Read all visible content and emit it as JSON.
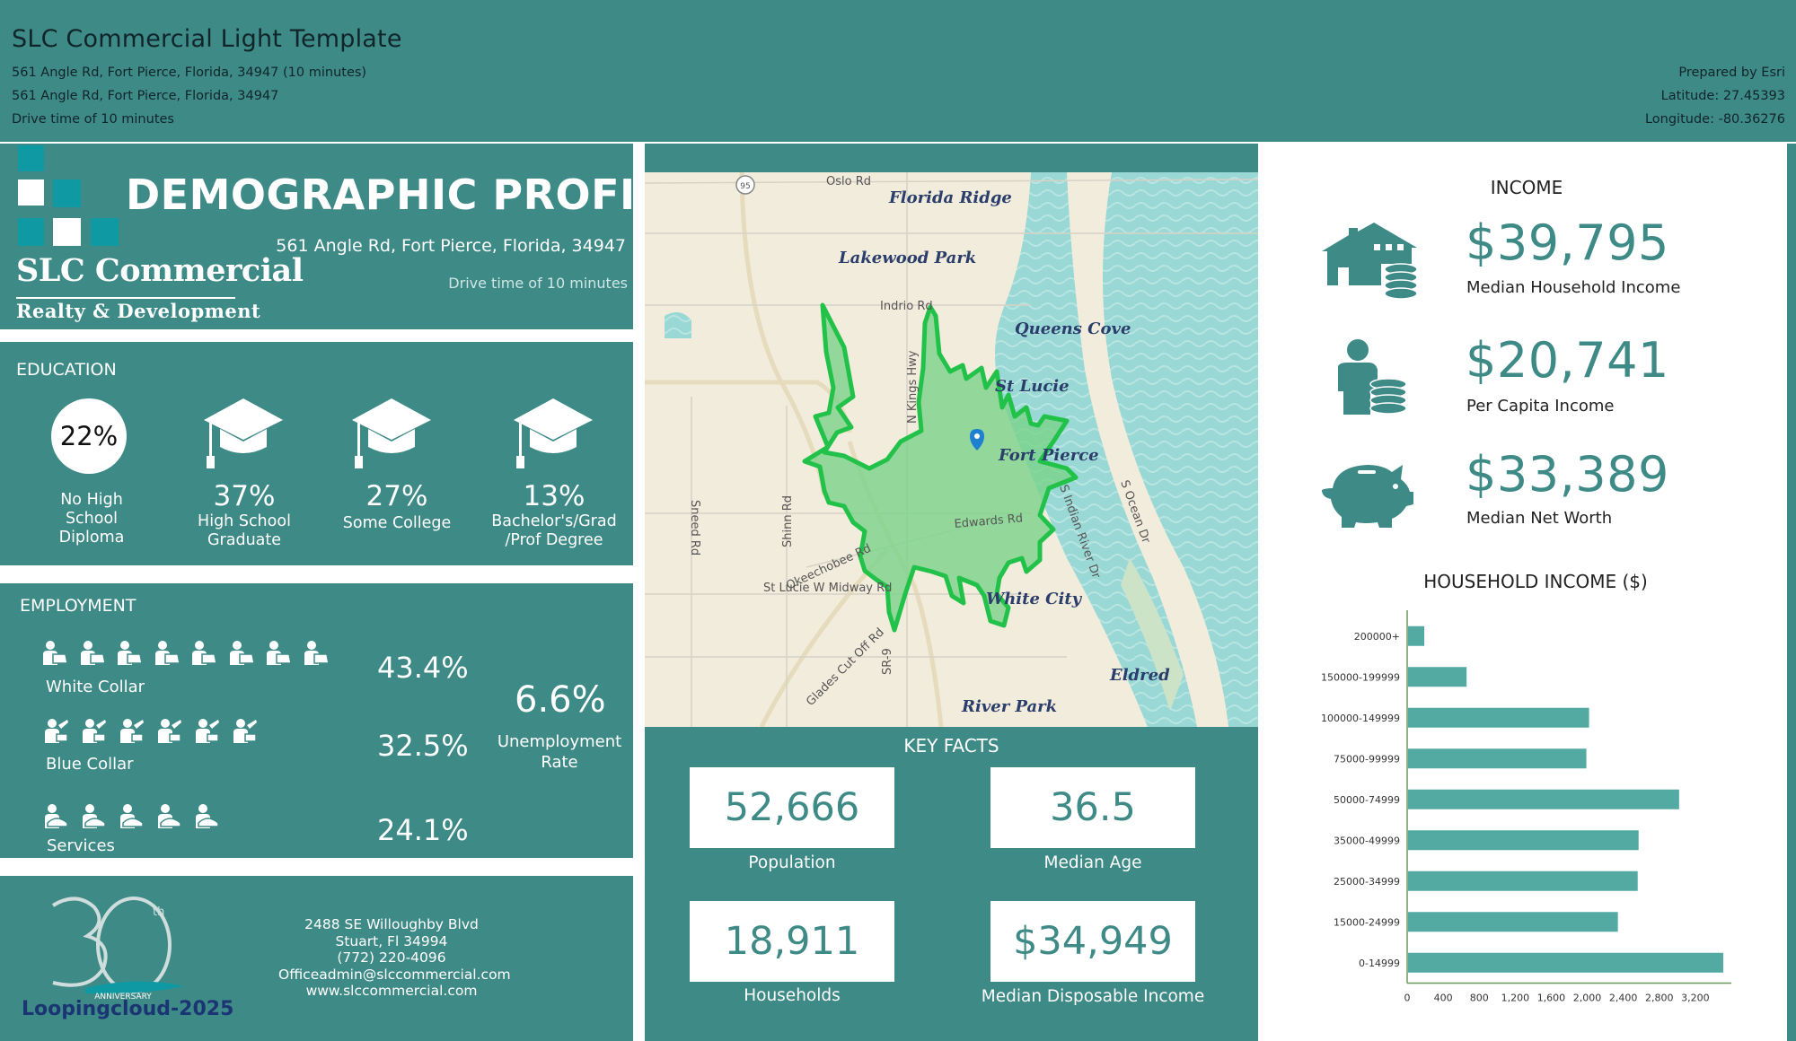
{
  "header": {
    "title": "SLC Commercial Light Template",
    "line1": "561 Angle Rd, Fort Pierce, Florida, 34947 (10 minutes)",
    "line2": "561 Angle Rd, Fort Pierce, Florida, 34947",
    "line3": "Drive time of 10 minutes",
    "prepared_by": "Prepared by Esri",
    "latitude": "Latitude: 27.45393",
    "longitude": "Longitude: -80.36276"
  },
  "brand": {
    "name": "SLC Commercial",
    "tagline": "Realty & Development",
    "profile_title": "DEMOGRAPHIC PROFILE",
    "address": "561 Angle Rd, Fort Pierce, Florida, 34947",
    "drive_time": "Drive time of 10 minutes"
  },
  "education": {
    "label": "EDUCATION",
    "items": [
      {
        "pct": "22%",
        "label_lines": [
          "No High",
          "School",
          "Diploma"
        ]
      },
      {
        "pct": "37%",
        "label_lines": [
          "High School",
          "Graduate"
        ]
      },
      {
        "pct": "27%",
        "label_lines": [
          "Some College"
        ]
      },
      {
        "pct": "13%",
        "label_lines": [
          "Bachelor's/Grad",
          "/Prof Degree"
        ]
      }
    ]
  },
  "employment": {
    "label": "EMPLOYMENT",
    "white_collar": {
      "label": "White Collar",
      "pct": "43.4%"
    },
    "blue_collar": {
      "label": "Blue Collar",
      "pct": "32.5%"
    },
    "services": {
      "label": "Services",
      "pct": "24.1%"
    },
    "unemployment": {
      "pct": "6.6%",
      "label_lines": [
        "Unemployment",
        "Rate"
      ]
    }
  },
  "contact": {
    "lines": [
      "2488 SE Willoughby Blvd",
      "Stuart, Fl 34994",
      "(772) 220-4096",
      "Officeadmin@slccommercial.com",
      "www.slccommercial.com"
    ],
    "anniversary_label": "Loopingcloud-2025",
    "anniversary_sub": "ANNIVERSARY",
    "anniversary_th": "th"
  },
  "map": {
    "places": [
      "Florida Ridge",
      "Lakewood Park",
      "Queens Cove",
      "St Lucie",
      "Fort Pierce",
      "White City",
      "Eldred",
      "River Park"
    ],
    "roads": [
      "Oslo Rd",
      "Indrio Rd",
      "Sneed Rd",
      "Shinn Rd",
      "Okeechobee Rd",
      "St Lucie W Midway Rd",
      "Edwards Rd",
      "Glades Cut Off Rd",
      "SR-9",
      "N Kings Hwy",
      "S Indian River Dr",
      "S Ocean Dr",
      "95"
    ]
  },
  "key_facts": {
    "title": "KEY FACTS",
    "items": [
      {
        "value": "52,666",
        "label": "Population"
      },
      {
        "value": "36.5",
        "label": "Median Age"
      },
      {
        "value": "18,911",
        "label": "Households"
      },
      {
        "value": "$34,949",
        "label": "Median Disposable Income"
      }
    ]
  },
  "income": {
    "title": "INCOME",
    "items": [
      {
        "value": "$39,795",
        "label": "Median Household Income",
        "icon": "house-coins-icon"
      },
      {
        "value": "$20,741",
        "label": "Per Capita Income",
        "icon": "person-coins-icon"
      },
      {
        "value": "$33,389",
        "label": "Median Net Worth",
        "icon": "piggy-bank-icon"
      }
    ]
  },
  "colors": {
    "teal": "#3e8a87",
    "bar": "#52aaa3",
    "route": "#22c24a"
  },
  "chart_data": {
    "type": "bar",
    "orientation": "horizontal",
    "title": "HOUSEHOLD INCOME ($)",
    "categories": [
      "200000+",
      "150000-199999",
      "100000-149999",
      "75000-99999",
      "50000-74999",
      "35000-49999",
      "25000-34999",
      "15000-24999",
      "0-14999"
    ],
    "values": [
      180,
      650,
      2010,
      1980,
      3010,
      2560,
      2550,
      2330,
      3500
    ],
    "xticks": [
      "0",
      "400",
      "800",
      "1,200",
      "1,600",
      "2,000",
      "2,400",
      "2,800",
      "3,200"
    ],
    "xlim": [
      0,
      3600
    ],
    "grid": false
  }
}
